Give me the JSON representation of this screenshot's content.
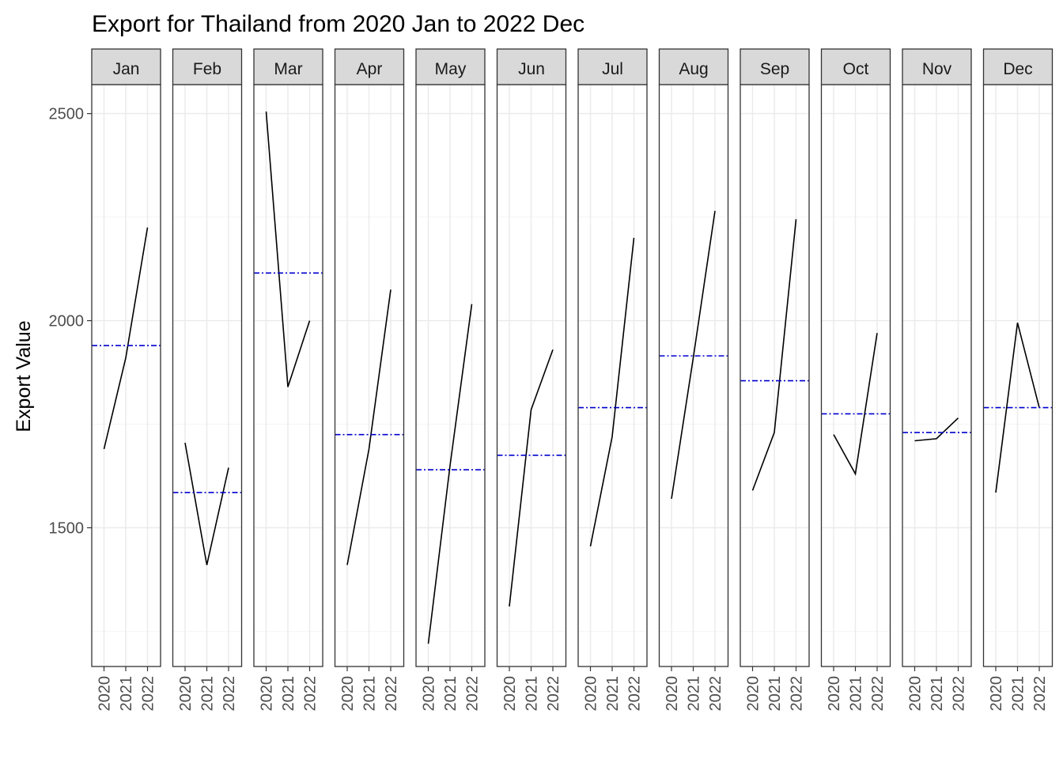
{
  "chart_data": {
    "type": "line",
    "title": "Export for Thailand from 2020 Jan to 2022 Dec",
    "xlabel": "",
    "ylabel": "Export Value",
    "facet_labels": [
      "Jan",
      "Feb",
      "Mar",
      "Apr",
      "May",
      "Jun",
      "Jul",
      "Aug",
      "Sep",
      "Oct",
      "Nov",
      "Dec"
    ],
    "x": [
      "2020",
      "2021",
      "2022"
    ],
    "ylim": [
      1165,
      2570
    ],
    "y_ticks": [
      1500,
      2000,
      2500
    ],
    "y_tick_labels": [
      "1500",
      "2000",
      "2500"
    ],
    "grid": true,
    "series": [
      {
        "facet": "Jan",
        "values": [
          1690,
          1910,
          2225
        ],
        "mean": 1940
      },
      {
        "facet": "Feb",
        "values": [
          1705,
          1410,
          1645
        ],
        "mean": 1585
      },
      {
        "facet": "Mar",
        "values": [
          2505,
          1840,
          2000
        ],
        "mean": 2115
      },
      {
        "facet": "Apr",
        "values": [
          1410,
          1690,
          2075
        ],
        "mean": 1725
      },
      {
        "facet": "May",
        "values": [
          1220,
          1650,
          2040
        ],
        "mean": 1640
      },
      {
        "facet": "Jun",
        "values": [
          1310,
          1785,
          1930
        ],
        "mean": 1675
      },
      {
        "facet": "Jul",
        "values": [
          1455,
          1720,
          2200
        ],
        "mean": 1790
      },
      {
        "facet": "Aug",
        "values": [
          1570,
          1910,
          2265
        ],
        "mean": 1915
      },
      {
        "facet": "Sep",
        "values": [
          1590,
          1730,
          2245
        ],
        "mean": 1855
      },
      {
        "facet": "Oct",
        "values": [
          1725,
          1630,
          1970
        ],
        "mean": 1775
      },
      {
        "facet": "Nov",
        "values": [
          1710,
          1715,
          1765
        ],
        "mean": 1730
      },
      {
        "facet": "Dec",
        "values": [
          1585,
          1995,
          1790
        ],
        "mean": 1790
      }
    ],
    "colors": {
      "line": "#000000",
      "mean_line": "#0000CD",
      "strip_fill": "#D9D9D9",
      "panel_border": "#333333",
      "grid_major": "#EBEBEB",
      "grid_minor": "#F5F5F5",
      "axis_text": "#4D4D4D",
      "title": "#000000"
    }
  }
}
